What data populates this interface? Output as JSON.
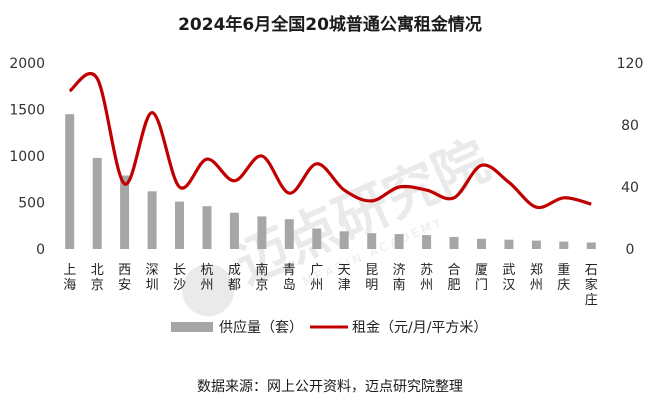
{
  "chart_data": {
    "type": "bar",
    "title": "2024年6月全国20城普通公寓租金情况",
    "categories": [
      "上海",
      "北京",
      "西安",
      "深圳",
      "长沙",
      "杭州",
      "成都",
      "南京",
      "青岛",
      "广州",
      "天津",
      "昆明",
      "济南",
      "苏州",
      "合肥",
      "厦门",
      "武汉",
      "郑州",
      "重庆",
      "石家庄"
    ],
    "series": [
      {
        "name": "供应量（套）",
        "axis": "left",
        "type": "bar",
        "color": "#a6a6a6",
        "values": [
          1450,
          980,
          790,
          620,
          510,
          460,
          390,
          350,
          320,
          220,
          190,
          170,
          160,
          150,
          130,
          110,
          100,
          90,
          80,
          70
        ]
      },
      {
        "name": "租金（元/月/平方米）",
        "axis": "right",
        "type": "line",
        "smooth": true,
        "color": "#c00000",
        "values": [
          102,
          110,
          42,
          88,
          40,
          58,
          44,
          60,
          36,
          55,
          38,
          31,
          40,
          38,
          33,
          54,
          43,
          27,
          33,
          29
        ]
      }
    ],
    "y_left": {
      "min": 0,
      "max": 2000,
      "ticks": [
        0,
        500,
        1000,
        1500,
        2000
      ]
    },
    "y_right": {
      "min": 0,
      "max": 120,
      "ticks": [
        0,
        40,
        80,
        120
      ]
    },
    "grid": false,
    "legend_position": "bottom"
  },
  "watermark": {
    "text": "迈点研究院",
    "subtext": "MEADIN ACADEMY"
  },
  "source_note": "数据来源：网上公开资料，迈点研究院整理"
}
